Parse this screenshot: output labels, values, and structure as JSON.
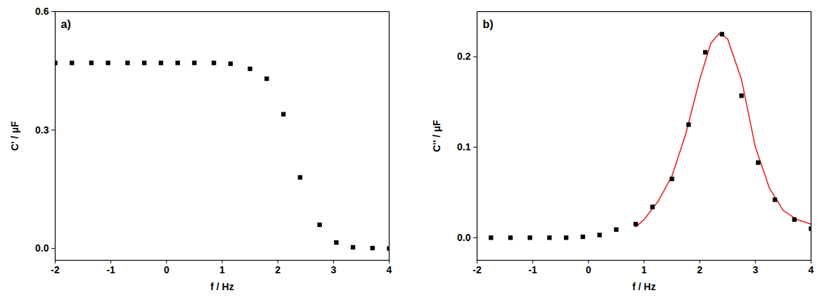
{
  "chart_data": [
    {
      "type": "scatter",
      "title": "a)",
      "x_label": "f / Hz",
      "y_label": "C' / μF",
      "xlim": [
        -2,
        4
      ],
      "xticks": [
        -2,
        -1,
        0,
        1,
        2,
        3,
        4
      ],
      "ylim": [
        -0.03,
        0.6
      ],
      "yticks": [
        {
          "value": 0,
          "label": "0.0"
        },
        0.3,
        0.6
      ],
      "grid": false,
      "series": [
        {
          "type": "scatter",
          "marker": "square",
          "color": "#000000",
          "x": [
            -2,
            -1.7,
            -1.35,
            -1.05,
            -0.7,
            -0.4,
            -0.1,
            0.2,
            0.5,
            0.85,
            1.15,
            1.5,
            1.8,
            2.1,
            2.4,
            2.75,
            3.05,
            3.35,
            3.7,
            4.0
          ],
          "values": [
            0.47,
            0.47,
            0.47,
            0.47,
            0.47,
            0.47,
            0.47,
            0.47,
            0.47,
            0.47,
            0.468,
            0.455,
            0.43,
            0.34,
            0.18,
            0.06,
            0.015,
            0.003,
            0.001,
            0.0
          ]
        }
      ]
    },
    {
      "type": "scatter",
      "title": "b)",
      "x_label": "f / Hz",
      "y_label": "C'' / μF",
      "xlim": [
        -2,
        4
      ],
      "xticks": [
        -2,
        -1,
        0,
        1,
        2,
        3,
        4
      ],
      "ylim": [
        -0.025,
        0.25
      ],
      "yticks": [
        {
          "value": 0,
          "label": "0.0"
        },
        0.1,
        0.2
      ],
      "grid": false,
      "series": [
        {
          "type": "scatter",
          "marker": "square",
          "color": "#000000",
          "x": [
            -1.75,
            -1.4,
            -1.05,
            -0.7,
            -0.4,
            -0.1,
            0.2,
            0.5,
            0.85,
            1.15,
            1.5,
            1.8,
            2.1,
            2.4,
            2.75,
            3.05,
            3.35,
            3.7,
            4.0
          ],
          "values": [
            0.0,
            0.0,
            0.0,
            0.0,
            0.0,
            0.001,
            0.003,
            0.009,
            0.015,
            0.034,
            0.065,
            0.125,
            0.205,
            0.225,
            0.157,
            0.083,
            0.042,
            0.02,
            0.01
          ]
        },
        {
          "type": "line",
          "color": "#e8251f",
          "x": [
            0.85,
            1.0,
            1.25,
            1.5,
            1.75,
            2.0,
            2.2,
            2.35,
            2.5,
            2.75,
            3.0,
            3.25,
            3.5,
            3.75,
            4.0
          ],
          "values": [
            0.012,
            0.02,
            0.04,
            0.068,
            0.115,
            0.175,
            0.215,
            0.226,
            0.22,
            0.175,
            0.1,
            0.055,
            0.03,
            0.02,
            0.015
          ]
        }
      ]
    }
  ]
}
